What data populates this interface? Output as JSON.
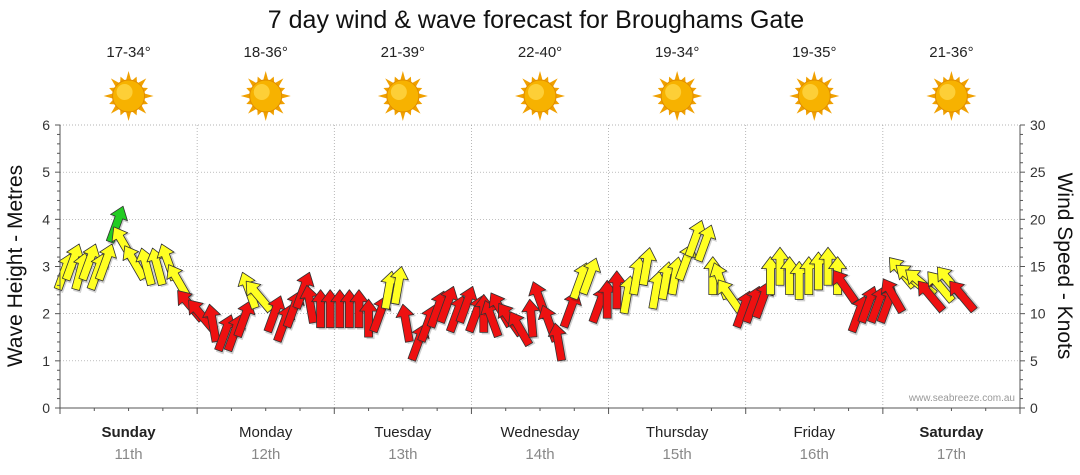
{
  "chart_data": {
    "type": "wind_wave_forecast",
    "title": "7 day wind & wave forecast for Broughams Gate",
    "ylabel_left": "Wave Height - Metres",
    "ylabel_right": "Wind Speed - Knots",
    "ylim_left": [
      0,
      6
    ],
    "ylim_right": [
      0,
      30
    ],
    "left_ticks": [
      "0",
      "1",
      "2",
      "3",
      "4",
      "5",
      "6"
    ],
    "right_ticks": [
      "0",
      "5",
      "10",
      "15",
      "20",
      "25",
      "30"
    ],
    "grid": true,
    "days": [
      {
        "name": "Sunday",
        "date": "11th",
        "temps": "17-34°",
        "icon": "sun-icon",
        "bold": true
      },
      {
        "name": "Monday",
        "date": "12th",
        "temps": "18-36°",
        "icon": "sun-icon",
        "bold": false
      },
      {
        "name": "Tuesday",
        "date": "13th",
        "temps": "21-39°",
        "icon": "sun-icon",
        "bold": false
      },
      {
        "name": "Wednesday",
        "date": "14th",
        "temps": "22-40°",
        "icon": "sun-icon",
        "bold": false
      },
      {
        "name": "Thursday",
        "date": "15th",
        "temps": "19-34°",
        "icon": "sun-icon",
        "bold": false
      },
      {
        "name": "Friday",
        "date": "16th",
        "temps": "19-35°",
        "icon": "sun-icon",
        "bold": false
      },
      {
        "name": "Saturday",
        "date": "17th",
        "temps": "21-36°",
        "icon": "sun-icon",
        "bold": true
      }
    ],
    "wind_colors": {
      "red": "#ee1111",
      "yellow": "#ffff22",
      "green": "#22cc22"
    },
    "wind_series": {
      "x_unit": "day",
      "y_unit": "knots",
      "points": [
        {
          "x": 0.0,
          "y": 14.0,
          "dir": 200,
          "color": "yellow"
        },
        {
          "x": 0.06,
          "y": 15.0,
          "dir": 200,
          "color": "yellow"
        },
        {
          "x": 0.12,
          "y": 14.0,
          "dir": 195,
          "color": "yellow"
        },
        {
          "x": 0.18,
          "y": 15.0,
          "dir": 200,
          "color": "yellow"
        },
        {
          "x": 0.24,
          "y": 14.0,
          "dir": 200,
          "color": "yellow"
        },
        {
          "x": 0.3,
          "y": 15.0,
          "dir": 200,
          "color": "yellow"
        },
        {
          "x": 0.38,
          "y": 19.0,
          "dir": 200,
          "color": "green"
        },
        {
          "x": 0.46,
          "y": 17.0,
          "dir": 150,
          "color": "yellow"
        },
        {
          "x": 0.54,
          "y": 15.0,
          "dir": 150,
          "color": "yellow"
        },
        {
          "x": 0.62,
          "y": 14.5,
          "dir": 165,
          "color": "yellow"
        },
        {
          "x": 0.7,
          "y": 14.5,
          "dir": 165,
          "color": "yellow"
        },
        {
          "x": 0.78,
          "y": 15.0,
          "dir": 160,
          "color": "yellow"
        },
        {
          "x": 0.86,
          "y": 13.0,
          "dir": 150,
          "color": "yellow"
        },
        {
          "x": 0.95,
          "y": 10.5,
          "dir": 140,
          "color": "red"
        },
        {
          "x": 1.03,
          "y": 9.5,
          "dir": 140,
          "color": "red"
        },
        {
          "x": 1.1,
          "y": 8.5,
          "dir": 170,
          "color": "red"
        },
        {
          "x": 1.17,
          "y": 7.5,
          "dir": 200,
          "color": "red"
        },
        {
          "x": 1.24,
          "y": 7.5,
          "dir": 200,
          "color": "red"
        },
        {
          "x": 1.31,
          "y": 9.0,
          "dir": 200,
          "color": "red"
        },
        {
          "x": 1.37,
          "y": 12.0,
          "dir": 160,
          "color": "yellow"
        },
        {
          "x": 1.45,
          "y": 11.5,
          "dir": 140,
          "color": "yellow"
        },
        {
          "x": 1.53,
          "y": 9.5,
          "dir": 200,
          "color": "red"
        },
        {
          "x": 1.6,
          "y": 8.5,
          "dir": 200,
          "color": "red"
        },
        {
          "x": 1.67,
          "y": 10.0,
          "dir": 200,
          "color": "red"
        },
        {
          "x": 1.74,
          "y": 12.0,
          "dir": 200,
          "color": "red"
        },
        {
          "x": 1.81,
          "y": 10.5,
          "dir": 170,
          "color": "red"
        },
        {
          "x": 1.88,
          "y": 10.0,
          "dir": 180,
          "color": "red"
        },
        {
          "x": 1.95,
          "y": 10.0,
          "dir": 180,
          "color": "red"
        },
        {
          "x": 2.02,
          "y": 10.0,
          "dir": 180,
          "color": "red"
        },
        {
          "x": 2.09,
          "y": 10.0,
          "dir": 180,
          "color": "red"
        },
        {
          "x": 2.16,
          "y": 10.0,
          "dir": 180,
          "color": "red"
        },
        {
          "x": 2.23,
          "y": 9.0,
          "dir": 180,
          "color": "red"
        },
        {
          "x": 2.3,
          "y": 9.5,
          "dir": 200,
          "color": "red"
        },
        {
          "x": 2.37,
          "y": 12.0,
          "dir": 190,
          "color": "yellow"
        },
        {
          "x": 2.44,
          "y": 12.5,
          "dir": 190,
          "color": "yellow"
        },
        {
          "x": 2.51,
          "y": 8.5,
          "dir": 170,
          "color": "red"
        },
        {
          "x": 2.58,
          "y": 6.5,
          "dir": 200,
          "color": "red"
        },
        {
          "x": 2.65,
          "y": 8.5,
          "dir": 200,
          "color": "red"
        },
        {
          "x": 2.72,
          "y": 10.0,
          "dir": 200,
          "color": "red"
        },
        {
          "x": 2.79,
          "y": 10.5,
          "dir": 200,
          "color": "red"
        },
        {
          "x": 2.86,
          "y": 9.5,
          "dir": 200,
          "color": "red"
        },
        {
          "x": 2.93,
          "y": 10.5,
          "dir": 200,
          "color": "red"
        },
        {
          "x": 3.0,
          "y": 9.5,
          "dir": 200,
          "color": "red"
        },
        {
          "x": 3.07,
          "y": 9.5,
          "dir": 180,
          "color": "red"
        },
        {
          "x": 3.14,
          "y": 9.0,
          "dir": 160,
          "color": "red"
        },
        {
          "x": 3.21,
          "y": 10.0,
          "dir": 150,
          "color": "red"
        },
        {
          "x": 3.28,
          "y": 9.0,
          "dir": 145,
          "color": "red"
        },
        {
          "x": 3.35,
          "y": 8.0,
          "dir": 150,
          "color": "red"
        },
        {
          "x": 3.42,
          "y": 9.0,
          "dir": 175,
          "color": "red"
        },
        {
          "x": 3.49,
          "y": 11.0,
          "dir": 160,
          "color": "red"
        },
        {
          "x": 3.56,
          "y": 8.5,
          "dir": 160,
          "color": "red"
        },
        {
          "x": 3.62,
          "y": 6.5,
          "dir": 170,
          "color": "red"
        },
        {
          "x": 3.69,
          "y": 10.0,
          "dir": 200,
          "color": "red"
        },
        {
          "x": 3.76,
          "y": 13.0,
          "dir": 200,
          "color": "yellow"
        },
        {
          "x": 3.83,
          "y": 13.5,
          "dir": 200,
          "color": "yellow"
        },
        {
          "x": 3.9,
          "y": 10.5,
          "dir": 200,
          "color": "red"
        },
        {
          "x": 3.97,
          "y": 11.0,
          "dir": 180,
          "color": "red"
        },
        {
          "x": 4.04,
          "y": 12.0,
          "dir": 180,
          "color": "red"
        },
        {
          "x": 4.11,
          "y": 11.5,
          "dir": 190,
          "color": "yellow"
        },
        {
          "x": 4.18,
          "y": 13.5,
          "dir": 190,
          "color": "yellow"
        },
        {
          "x": 4.25,
          "y": 14.5,
          "dir": 190,
          "color": "yellow"
        },
        {
          "x": 4.32,
          "y": 12.0,
          "dir": 190,
          "color": "yellow"
        },
        {
          "x": 4.39,
          "y": 13.0,
          "dir": 190,
          "color": "yellow"
        },
        {
          "x": 4.46,
          "y": 13.5,
          "dir": 190,
          "color": "yellow"
        },
        {
          "x": 4.53,
          "y": 15.0,
          "dir": 200,
          "color": "yellow"
        },
        {
          "x": 4.6,
          "y": 17.5,
          "dir": 200,
          "color": "yellow"
        },
        {
          "x": 4.67,
          "y": 17.0,
          "dir": 200,
          "color": "yellow"
        },
        {
          "x": 4.74,
          "y": 13.5,
          "dir": 180,
          "color": "yellow"
        },
        {
          "x": 4.81,
          "y": 13.0,
          "dir": 160,
          "color": "yellow"
        },
        {
          "x": 4.88,
          "y": 11.5,
          "dir": 145,
          "color": "yellow"
        },
        {
          "x": 4.95,
          "y": 10.0,
          "dir": 200,
          "color": "red"
        },
        {
          "x": 5.02,
          "y": 10.5,
          "dir": 200,
          "color": "red"
        },
        {
          "x": 5.09,
          "y": 11.0,
          "dir": 200,
          "color": "red"
        },
        {
          "x": 5.16,
          "y": 13.5,
          "dir": 180,
          "color": "yellow"
        },
        {
          "x": 5.23,
          "y": 14.5,
          "dir": 180,
          "color": "yellow"
        },
        {
          "x": 5.3,
          "y": 13.5,
          "dir": 180,
          "color": "yellow"
        },
        {
          "x": 5.37,
          "y": 13.0,
          "dir": 180,
          "color": "yellow"
        },
        {
          "x": 5.44,
          "y": 13.5,
          "dir": 180,
          "color": "yellow"
        },
        {
          "x": 5.51,
          "y": 14.0,
          "dir": 180,
          "color": "yellow"
        },
        {
          "x": 5.58,
          "y": 14.5,
          "dir": 180,
          "color": "yellow"
        },
        {
          "x": 5.65,
          "y": 13.5,
          "dir": 180,
          "color": "yellow"
        },
        {
          "x": 5.72,
          "y": 12.5,
          "dir": 145,
          "color": "red"
        },
        {
          "x": 5.79,
          "y": 9.5,
          "dir": 200,
          "color": "red"
        },
        {
          "x": 5.86,
          "y": 10.5,
          "dir": 200,
          "color": "red"
        },
        {
          "x": 5.93,
          "y": 10.5,
          "dir": 200,
          "color": "red"
        },
        {
          "x": 6.0,
          "y": 10.5,
          "dir": 200,
          "color": "red"
        },
        {
          "x": 6.07,
          "y": 11.5,
          "dir": 150,
          "color": "red"
        },
        {
          "x": 6.14,
          "y": 14.0,
          "dir": 140,
          "color": "yellow"
        },
        {
          "x": 6.21,
          "y": 13.5,
          "dir": 130,
          "color": "yellow"
        },
        {
          "x": 6.28,
          "y": 13.0,
          "dir": 130,
          "color": "yellow"
        },
        {
          "x": 6.35,
          "y": 11.5,
          "dir": 140,
          "color": "red"
        },
        {
          "x": 6.42,
          "y": 12.5,
          "dir": 140,
          "color": "yellow"
        },
        {
          "x": 6.49,
          "y": 13.0,
          "dir": 140,
          "color": "yellow"
        },
        {
          "x": 6.58,
          "y": 11.5,
          "dir": 140,
          "color": "red"
        }
      ]
    },
    "watermark": "www.seabreeze.com.au"
  }
}
